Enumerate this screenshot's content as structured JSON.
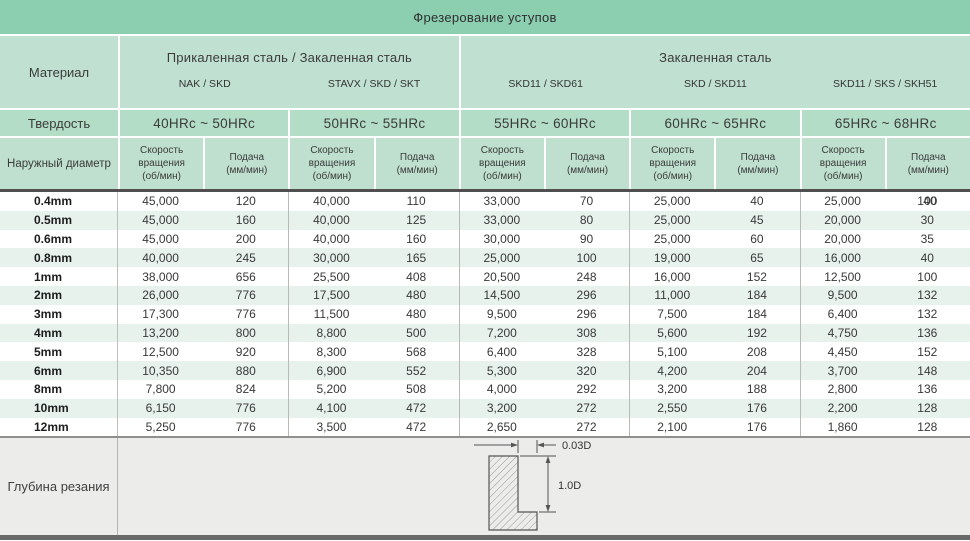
{
  "title": "Фрезерование уступов",
  "table": {
    "material_label": "Материал",
    "hardness_label": "Твердость",
    "diameter_label": "Наружный диаметр",
    "speed_header_lines": [
      "Скорость",
      "вращения",
      "(об/мин)"
    ],
    "feed_header_lines": [
      "Подача",
      "(мм/мин)"
    ],
    "groups": [
      {
        "label": "Прикаленная сталь / Закаленная сталь",
        "grades": [
          "NAK / SKD",
          "STAVX / SKD / SKT"
        ]
      },
      {
        "label": "Закаленная сталь",
        "grades": [
          "SKD11 / SKD61",
          "SKD / SKD11",
          "SKD11 / SKS / SKH51"
        ]
      }
    ],
    "hardness_ranges": [
      "40HRc ~ 50HRc",
      "50HRc ~ 55HRc",
      "55HRc ~ 60HRc",
      "60HRc ~ 65HRc",
      "65HRc ~ 68HRc"
    ],
    "rows": [
      {
        "diameter": "0.4mm",
        "values": [
          "45,000",
          "120",
          "40,000",
          "110",
          "33,000",
          "70",
          "25,000",
          "40",
          "25,000",
          {
            "value": "100",
            "overlay": "40"
          }
        ]
      },
      {
        "diameter": "0.5mm",
        "values": [
          "45,000",
          "160",
          "40,000",
          "125",
          "33,000",
          "80",
          "25,000",
          "45",
          "20,000",
          "30"
        ]
      },
      {
        "diameter": "0.6mm",
        "values": [
          "45,000",
          "200",
          "40,000",
          "160",
          "30,000",
          "90",
          "25,000",
          "60",
          "20,000",
          "35"
        ]
      },
      {
        "diameter": "0.8mm",
        "values": [
          "40,000",
          "245",
          "30,000",
          "165",
          "25,000",
          "100",
          "19,000",
          "65",
          "16,000",
          "40"
        ]
      },
      {
        "diameter": "1mm",
        "values": [
          "38,000",
          "656",
          "25,500",
          "408",
          "20,500",
          "248",
          "16,000",
          "152",
          "12,500",
          "100"
        ]
      },
      {
        "diameter": "2mm",
        "values": [
          "26,000",
          "776",
          "17,500",
          "480",
          "14,500",
          "296",
          "11,000",
          "184",
          "9,500",
          "132"
        ]
      },
      {
        "diameter": "3mm",
        "values": [
          "17,300",
          "776",
          "11,500",
          "480",
          "9,500",
          "296",
          "7,500",
          "184",
          "6,400",
          "132"
        ]
      },
      {
        "diameter": "4mm",
        "values": [
          "13,200",
          "800",
          "8,800",
          "500",
          "7,200",
          "308",
          "5,600",
          "192",
          "4,750",
          "136"
        ]
      },
      {
        "diameter": "5mm",
        "values": [
          "12,500",
          "920",
          "8,300",
          "568",
          "6,400",
          "328",
          "5,100",
          "208",
          "4,450",
          "152"
        ]
      },
      {
        "diameter": "6mm",
        "values": [
          "10,350",
          "880",
          "6,900",
          "552",
          "5,300",
          "320",
          "4,200",
          "204",
          "3,700",
          "148"
        ]
      },
      {
        "diameter": "8mm",
        "values": [
          "7,800",
          "824",
          "5,200",
          "508",
          "4,000",
          "292",
          "3,200",
          "188",
          "2,800",
          "136"
        ]
      },
      {
        "diameter": "10mm",
        "values": [
          "6,150",
          "776",
          "4,100",
          "472",
          "3,200",
          "272",
          "2,550",
          "176",
          "2,200",
          "128"
        ]
      },
      {
        "diameter": "12mm",
        "values": [
          "5,250",
          "776",
          "3,500",
          "472",
          "2,650",
          "272",
          "2,100",
          "176",
          "1,860",
          "128"
        ]
      }
    ]
  },
  "depth_section": {
    "label": "Глубина резания",
    "dim_radial": "0.03D",
    "dim_axial": "1.0D"
  },
  "colors": {
    "title_green": "#8ccfb0",
    "header_green": "#c0e1d1",
    "hardness_green": "#b3ddc7",
    "subheader_green": "#bfe0cf",
    "stripe": "#e8f2ed",
    "bottom_gray": "#ececeb",
    "dark_rule": "#4f4f4f"
  }
}
